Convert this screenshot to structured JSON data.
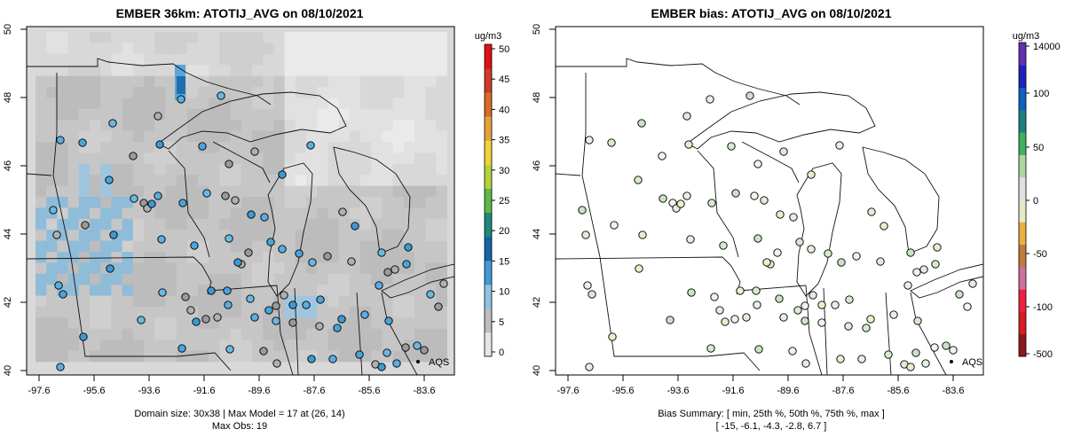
{
  "left_panel": {
    "title": "EMBER 36km: ATOTIJ_AVG on 08/10/2021",
    "x_ticks": [
      "-97.6",
      "-95.6",
      "-93.6",
      "-91.6",
      "-89.6",
      "-87.6",
      "-85.6",
      "-83.6"
    ],
    "y_ticks": [
      "40",
      "42",
      "44",
      "46",
      "48",
      "50"
    ],
    "legend_marker_label": "AQS",
    "footer_line1": "Domain size: 30x38 | Max Model = 17 at (26, 14)",
    "footer_line2": "Max Obs: 19",
    "colorbar": {
      "unit": "ug/m3",
      "labels": [
        "0",
        "5",
        "10",
        "15",
        "20",
        "25",
        "30",
        "35",
        "40",
        "45",
        "50"
      ],
      "colors": [
        "#e6e6e6",
        "#bdbdbd",
        "#8fc4e3",
        "#3f9ad6",
        "#1763a8",
        "#1e8a78",
        "#5fb84a",
        "#b5d43a",
        "#f0d23a",
        "#e6a33a",
        "#d96a2a",
        "#cf3b2a",
        "#e01010"
      ]
    }
  },
  "right_panel": {
    "title": "EMBER bias: ATOTIJ_AVG on 08/10/2021",
    "x_ticks": [
      "-97.6",
      "-95.6",
      "-93.6",
      "-91.6",
      "-89.6",
      "-87.6",
      "-85.6",
      "-83.6"
    ],
    "y_ticks": [
      "40",
      "42",
      "44",
      "46",
      "48",
      "50"
    ],
    "legend_marker_label": "AQS",
    "footer_line1": "Bias Summary: [ min, 25th %, 50th %, 75th %, max ]",
    "footer_line2": "[ -15,   -6.1,   -4.3,   -2.8,   6.7 ]",
    "colorbar": {
      "unit": "ug/m3",
      "labels": [
        "14000",
        "100",
        "50",
        "0",
        "-50",
        "-100",
        "-500"
      ],
      "colors": [
        "#8b1a1a",
        "#d42020",
        "#f02040",
        "#d070a0",
        "#c07a40",
        "#e8b040",
        "#e8e8c8",
        "#e0e0e0",
        "#a8d8a0",
        "#40b060",
        "#208080",
        "#1060c0",
        "#2020c0",
        "#6030b0"
      ]
    }
  }
}
